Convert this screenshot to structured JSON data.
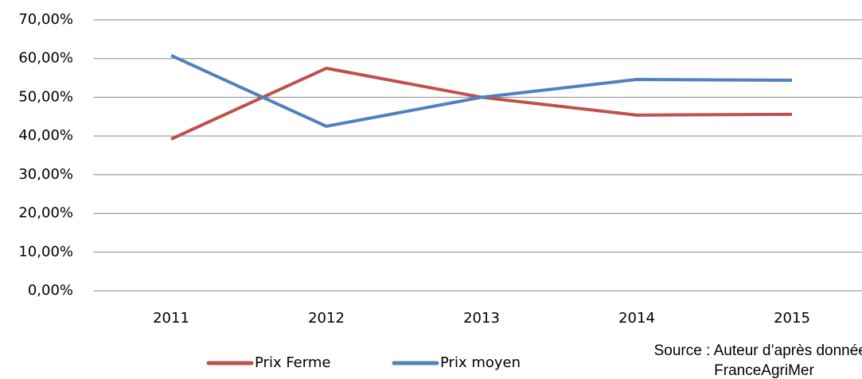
{
  "chart_data": {
    "type": "line",
    "categories": [
      "2011",
      "2012",
      "2013",
      "2014",
      "2015"
    ],
    "series": [
      {
        "name": "Prix Ferme",
        "color": "#c0504d",
        "values": [
          39.2,
          57.5,
          50,
          45.4,
          45.6
        ]
      },
      {
        "name": "Prix moyen",
        "color": "#4f81bd",
        "values": [
          60.8,
          42.5,
          50,
          54.6,
          54.4
        ]
      }
    ],
    "ylim": [
      0,
      70
    ],
    "yticks": [
      {
        "value": 0,
        "label": "0,00%"
      },
      {
        "value": 10,
        "label": "10,00%"
      },
      {
        "value": 20,
        "label": "20,00%"
      },
      {
        "value": 30,
        "label": "30,00%"
      },
      {
        "value": 40,
        "label": "40,00%"
      },
      {
        "value": 50,
        "label": "50,00%"
      },
      {
        "value": 60,
        "label": "60,00%"
      },
      {
        "value": 70,
        "label": "70,00%"
      }
    ],
    "grid": true,
    "legend": "bottom",
    "annotations": [
      "Source : Auteur d’après données",
      "FranceAgriMer"
    ]
  }
}
